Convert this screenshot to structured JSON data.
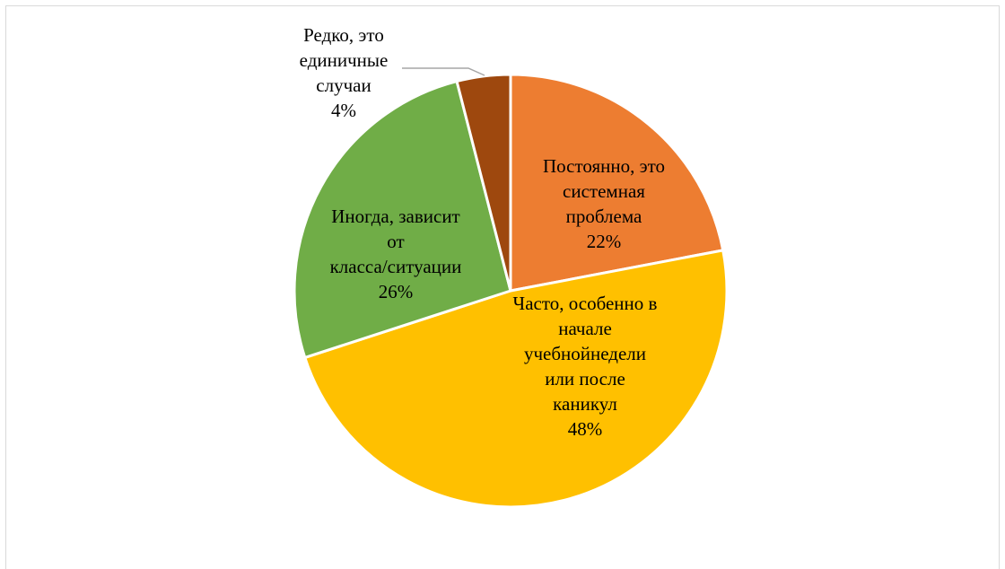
{
  "chart_data": {
    "type": "pie",
    "title": "",
    "slices": [
      {
        "label_lines": [
          "Постоянно, это",
          "системная",
          "проблема"
        ],
        "value": 22,
        "value_text": "22%",
        "color": "#ED7D31"
      },
      {
        "label_lines": [
          "Часто, особенно в",
          "начале",
          "учебнойнедели",
          "или после",
          "каникул"
        ],
        "value": 48,
        "value_text": "48%",
        "color": "#FFC000"
      },
      {
        "label_lines": [
          "Иногда, зависит",
          "от",
          "класса/ситуации"
        ],
        "value": 26,
        "value_text": "26%",
        "color": "#70AD47"
      },
      {
        "label_lines": [
          "Редко, это",
          "единичные",
          "случаи"
        ],
        "value": 4,
        "value_text": "4%",
        "color": "#9E480E"
      }
    ],
    "leader_line_color": "#A6A6A6",
    "legend": "none"
  }
}
